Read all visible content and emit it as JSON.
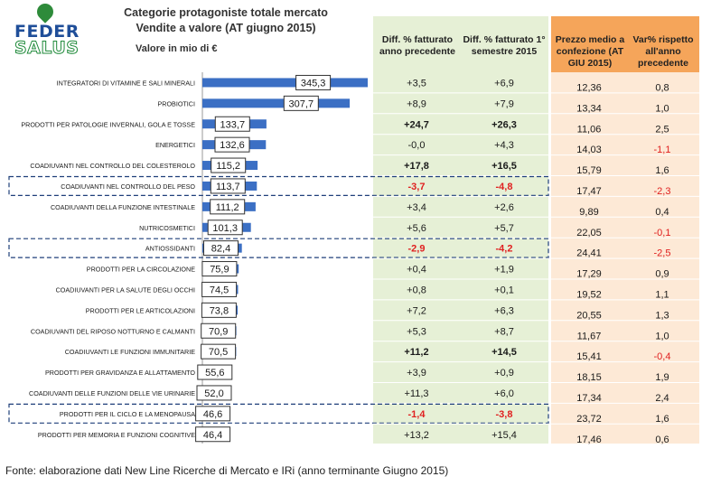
{
  "logo": {
    "line1": "FEDER",
    "line2": "SALUS"
  },
  "title": "Categorie protagoniste totale mercato",
  "title2": "Vendite a valore (AT giugno 2015)",
  "subtitle": "Valore in mio di €",
  "headers": {
    "diff_year": "Diff. % fatturato anno precedente",
    "diff_sem": "Diff. % fatturato 1° semestre 2015",
    "price": "Prezzo medio a confezione (AT GIU 2015)",
    "var_price": "Var% rispetto all'anno precedente"
  },
  "source": "Fonte: elaborazione dati New Line Ricerche di Mercato e IRi (anno terminante Giugno 2015)",
  "colors": {
    "bar": "#3b6fc4",
    "green_panel": "#e6f0d6",
    "orange_header": "#f5a55a",
    "orange_panel": "#fde9d6",
    "negative": "#e02020",
    "dashed": "#1f3f7a"
  },
  "chart_data": {
    "type": "bar",
    "orientation": "horizontal",
    "xlabel": "Valore in mio di €",
    "categories": [
      "INTEGRATORI DI VITAMINE E SALI MINERALI",
      "PROBIOTICI",
      "PRODOTTI PER PATOLOGIE INVERNALI, GOLA E TOSSE",
      "ENERGETICI",
      "COADIUVANTI NEL CONTROLLO DEL COLESTEROLO",
      "COADIUVANTI NEL CONTROLLO DEL PESO",
      "COADIUVANTI DELLA FUNZIONE INTESTINALE",
      "NUTRICOSMETICI",
      "ANTIOSSIDANTI",
      "PRODOTTI PER LA CIRCOLAZIONE",
      "COADIUVANTI PER LA SALUTE DEGLI OCCHI",
      "PRODOTTI PER LE ARTICOLAZIONI",
      "COADIUVANTI DEL RIPOSO NOTTURNO E CALMANTI",
      "COADIUVANTI LE FUNZIONI IMMUNITARIE",
      "PRODOTTI PER GRAVIDANZA E ALLATTAMENTO",
      "COADIUVANTI DELLE FUNZIONI DELLE VIE URINARIE",
      "PRODOTTI PER IL CICLO E LA MENOPAUSA",
      "PRODOTTI PER MEMORIA E FUNZIONI COGNITIVE"
    ],
    "values": [
      345.3,
      307.7,
      133.7,
      132.6,
      115.2,
      113.7,
      111.2,
      101.3,
      82.4,
      75.9,
      74.5,
      73.8,
      70.9,
      70.5,
      55.6,
      52.0,
      46.6,
      46.4
    ],
    "value_labels": [
      "345,3",
      "307,7",
      "133,7",
      "132,6",
      "115,2",
      "113,7",
      "111,2",
      "101,3",
      "82,4",
      "75,9",
      "74,5",
      "73,8",
      "70,9",
      "70,5",
      "55,6",
      "52,0",
      "46,6",
      "46,4"
    ],
    "diff_year": [
      "+3,5",
      "+8,9",
      "+24,7",
      "-0,0",
      "+17,8",
      "-3,7",
      "+3,4",
      "+5,6",
      "-2,9",
      "+0,4",
      "+0,8",
      "+7,2",
      "+5,3",
      "+11,2",
      "+3,9",
      "+11,3",
      "-1,4",
      "+13,2"
    ],
    "diff_sem": [
      "+6,9",
      "+7,9",
      "+26,3",
      "+4,3",
      "+16,5",
      "-4,8",
      "+2,6",
      "+5,7",
      "-4,2",
      "+1,9",
      "+0,1",
      "+6,3",
      "+8,7",
      "+14,5",
      "+0,9",
      "+6,0",
      "-3,8",
      "+15,4"
    ],
    "price": [
      "12,36",
      "13,34",
      "11,06",
      "14,03",
      "15,79",
      "17,47",
      "9,89",
      "22,05",
      "24,41",
      "17,29",
      "19,52",
      "20,55",
      "11,67",
      "15,41",
      "18,15",
      "17,34",
      "23,72",
      "17,46"
    ],
    "var_price": [
      "0,8",
      "1,0",
      "2,5",
      "-1,1",
      "1,6",
      "-2,3",
      "0,4",
      "-0,1",
      "-2,5",
      "0,9",
      "1,1",
      "1,3",
      "1,0",
      "-0,4",
      "1,9",
      "2,4",
      "1,6",
      "0,6"
    ],
    "bold_rows": [
      2,
      4,
      5,
      8,
      13,
      16
    ],
    "highlighted_rows": [
      5,
      8,
      16
    ]
  }
}
